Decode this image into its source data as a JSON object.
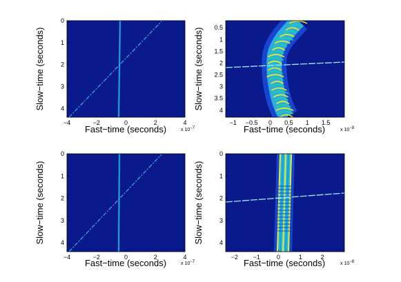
{
  "chart_data": [
    {
      "type": "heatmap",
      "panel": "top-left",
      "xlabel": "Fast−time (seconds)",
      "ylabel": "Slow−time (seconds)",
      "x_multiplier": "x 10",
      "x_exponent": "−7",
      "xlim": [
        -4,
        4
      ],
      "ylim": [
        0,
        4.4
      ],
      "xticks": [
        "−4",
        "−2",
        "0",
        "2",
        "4"
      ],
      "yticks": [
        "0",
        "1",
        "2",
        "3",
        "4"
      ],
      "colormap": "jet",
      "background_color": "#0a1a8c",
      "features": [
        {
          "kind": "vertical-streak",
          "x": 0.0,
          "y_range": [
            0,
            4.4
          ],
          "color": "#30d0e8"
        },
        {
          "kind": "diagonal-streak",
          "from": [
            -3.2,
            4.4
          ],
          "to": [
            2.6,
            0.0
          ],
          "color": "#50c8f0"
        }
      ]
    },
    {
      "type": "heatmap",
      "panel": "top-right",
      "xlabel": "Fast−time (seconds)",
      "ylabel": "Slow−time (seconds)",
      "x_multiplier": "x 10",
      "x_exponent": "−8",
      "xlim": [
        -1.2,
        2.0
      ],
      "ylim": [
        0.2,
        4.3
      ],
      "xticks": [
        "−1",
        "−0.5",
        "0",
        "0.5",
        "1",
        "1.5"
      ],
      "yticks": [
        "0.5",
        "1",
        "1.5",
        "2",
        "2.5",
        "3",
        "3.5",
        "4"
      ],
      "colormap": "jet",
      "background_color": "#0a1a8c",
      "features": [
        {
          "kind": "curved-band",
          "center_x": [
            [
              0.2,
              0.65
            ],
            [
              0.8,
              0.5
            ],
            [
              1.6,
              0.2
            ],
            [
              2.2,
              0.2
            ],
            [
              2.8,
              0.35
            ],
            [
              3.6,
              0.5
            ],
            [
              4.3,
              0.6
            ]
          ],
          "color": "#e8f020"
        },
        {
          "kind": "diagonal-streak",
          "from": [
            -1.2,
            2.05
          ],
          "to": [
            2.0,
            1.9
          ],
          "color": "#a0f0ff"
        }
      ]
    },
    {
      "type": "heatmap",
      "panel": "bottom-left",
      "xlabel": "Fast−time (seconds)",
      "ylabel": "Slow−time (seconds)",
      "x_multiplier": "x 10",
      "x_exponent": "−7",
      "xlim": [
        -4,
        4
      ],
      "ylim": [
        0,
        4.4
      ],
      "xticks": [
        "−4",
        "−2",
        "0",
        "2",
        "4"
      ],
      "yticks": [
        "0",
        "1",
        "2",
        "3",
        "4"
      ],
      "colormap": "jet",
      "background_color": "#0a1a8c",
      "features": [
        {
          "kind": "vertical-streak",
          "x": 0.0,
          "y_range": [
            0,
            4.4
          ],
          "color": "#30d0e8"
        },
        {
          "kind": "diagonal-streak",
          "from": [
            -3.2,
            4.4
          ],
          "to": [
            2.6,
            0.0
          ],
          "color": "#50c8f0"
        }
      ]
    },
    {
      "type": "heatmap",
      "panel": "bottom-right",
      "xlabel": "Fast−time (seconds)",
      "ylabel": "Slow−time (seconds)",
      "x_multiplier": "x 10",
      "x_exponent": "−8",
      "xlim": [
        -2.4,
        3.0
      ],
      "ylim": [
        0,
        4.4
      ],
      "xticks": [
        "−2",
        "−1",
        "0",
        "1",
        "2"
      ],
      "yticks": [
        "0",
        "1",
        "2",
        "3",
        "4"
      ],
      "colormap": "jet",
      "background_color": "#0a1a8c",
      "features": [
        {
          "kind": "straight-band",
          "center_x": [
            [
              0.0,
              0.1
            ],
            [
              4.4,
              -0.1
            ]
          ],
          "color": "#e8f020"
        },
        {
          "kind": "diagonal-streak",
          "from": [
            -2.4,
            2.25
          ],
          "to": [
            3.0,
            1.85
          ],
          "color": "#a0f0ff"
        }
      ]
    }
  ]
}
